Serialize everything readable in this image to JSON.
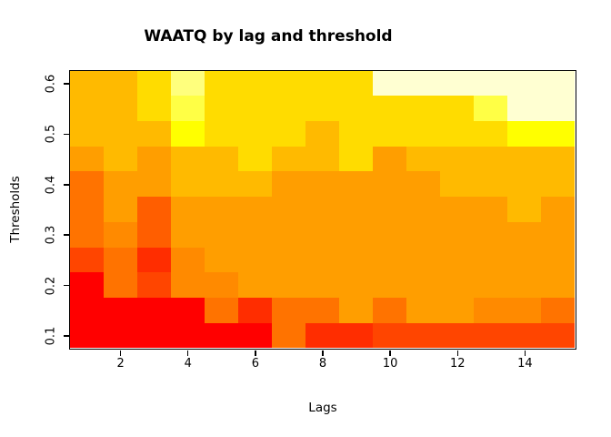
{
  "figure": {
    "background": "#FFFFFF",
    "axis_color": "#000000"
  },
  "chart_data": {
    "type": "heatmap",
    "title": "WAATQ by lag and threshold",
    "xlabel": "Lags",
    "ylabel": "Thresholds",
    "x_categories_lags": [
      1,
      2,
      3,
      4,
      5,
      6,
      7,
      8,
      9,
      10,
      11,
      12,
      13,
      14,
      15
    ],
    "y_categories_thresholds": [
      0.1,
      0.15,
      0.2,
      0.25,
      0.3,
      0.35,
      0.4,
      0.45,
      0.5,
      0.55,
      0.6
    ],
    "x_tick_labels": [
      "2",
      "4",
      "6",
      "8",
      "10",
      "12",
      "14"
    ],
    "y_tick_labels": [
      "0.1",
      "0.2",
      "0.3",
      "0.4",
      "0.5",
      "0.6"
    ],
    "x_range": [
      0.5,
      15.5
    ],
    "y_range": [
      0.075,
      0.625
    ],
    "grid": "off",
    "legend": "none",
    "palette_low_to_high": [
      "#FF0000",
      "#FF2D00",
      "#FF4500",
      "#FF5E00",
      "#FF7300",
      "#FF8A00",
      "#FF9E00",
      "#FFBA00",
      "#FFDC00",
      "#FFFF00",
      "#FFFF45",
      "#FFFF7D",
      "#FFFFD2"
    ],
    "rows_top_to_bottom": [
      {
        "threshold": 0.6,
        "palette_indices": [
          7,
          7,
          8,
          11,
          8,
          8,
          8,
          8,
          8,
          12,
          12,
          12,
          12,
          12,
          12
        ]
      },
      {
        "threshold": 0.55,
        "palette_indices": [
          7,
          7,
          8,
          10,
          8,
          8,
          8,
          8,
          8,
          8,
          8,
          8,
          10,
          12,
          12
        ]
      },
      {
        "threshold": 0.5,
        "palette_indices": [
          7,
          7,
          7,
          9,
          8,
          8,
          8,
          7,
          8,
          8,
          8,
          8,
          8,
          9,
          9
        ]
      },
      {
        "threshold": 0.45,
        "palette_indices": [
          6,
          7,
          6,
          7,
          7,
          8,
          7,
          7,
          8,
          6,
          7,
          7,
          7,
          7,
          7
        ]
      },
      {
        "threshold": 0.4,
        "palette_indices": [
          4,
          6,
          6,
          7,
          7,
          7,
          6,
          6,
          6,
          6,
          6,
          7,
          7,
          7,
          7
        ]
      },
      {
        "threshold": 0.35,
        "palette_indices": [
          4,
          6,
          3,
          6,
          6,
          6,
          6,
          6,
          6,
          6,
          6,
          6,
          6,
          7,
          6
        ]
      },
      {
        "threshold": 0.3,
        "palette_indices": [
          4,
          5,
          3,
          6,
          6,
          6,
          6,
          6,
          6,
          6,
          6,
          6,
          6,
          6,
          6
        ]
      },
      {
        "threshold": 0.25,
        "palette_indices": [
          2,
          4,
          1,
          5,
          6,
          6,
          6,
          6,
          6,
          6,
          6,
          6,
          6,
          6,
          6
        ]
      },
      {
        "threshold": 0.2,
        "palette_indices": [
          0,
          4,
          2,
          5,
          5,
          6,
          6,
          6,
          6,
          6,
          6,
          6,
          6,
          6,
          6
        ]
      },
      {
        "threshold": 0.15,
        "palette_indices": [
          0,
          0,
          0,
          0,
          4,
          1,
          4,
          4,
          6,
          4,
          6,
          6,
          5,
          5,
          4
        ]
      },
      {
        "threshold": 0.1,
        "palette_indices": [
          0,
          0,
          0,
          0,
          0,
          0,
          4,
          1,
          1,
          2,
          2,
          2,
          2,
          2,
          2
        ]
      }
    ]
  }
}
